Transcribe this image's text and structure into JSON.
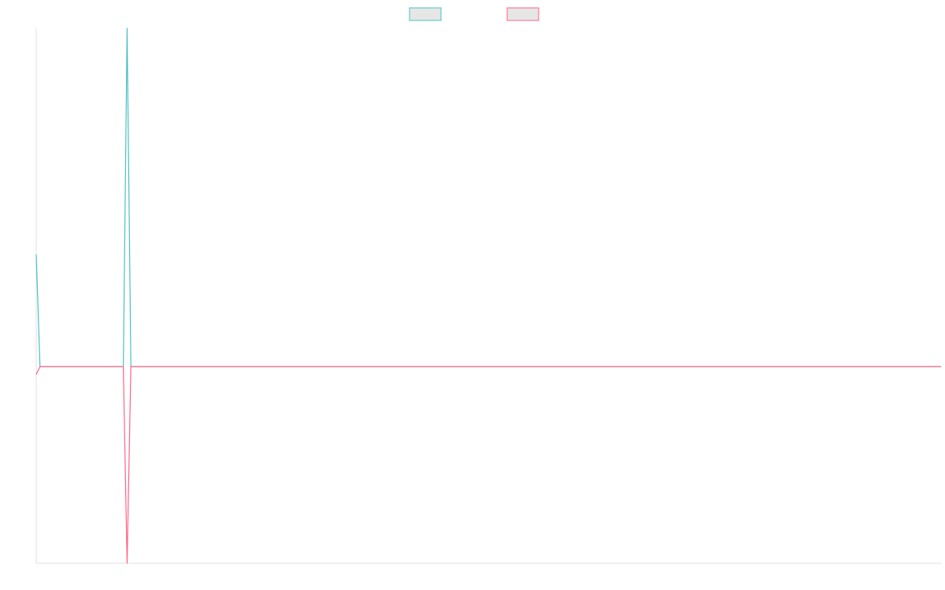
{
  "chart_data": {
    "type": "line",
    "title": "",
    "xlabel": "",
    "ylabel": "",
    "legend": {
      "placement": "top-center",
      "colors": [
        "#4bc0c0",
        "#ff6384"
      ]
    },
    "x_count": 240,
    "ylim": [
      -1.0,
      1.0
    ],
    "grid": false,
    "series": [
      {
        "color": "#4bc0c0",
        "points": [
          [
            0,
            0.57
          ],
          [
            1,
            0.0
          ],
          [
            23,
            0.0
          ],
          [
            24,
            1.72
          ],
          [
            25,
            0.0
          ],
          [
            239,
            0.0
          ]
        ]
      },
      {
        "color": "#ff6384",
        "points": [
          [
            0,
            -0.04
          ],
          [
            1,
            0.0
          ],
          [
            23,
            0.0
          ],
          [
            24,
            -1.0
          ],
          [
            25,
            0.0
          ],
          [
            239,
            0.0
          ]
        ]
      }
    ]
  }
}
